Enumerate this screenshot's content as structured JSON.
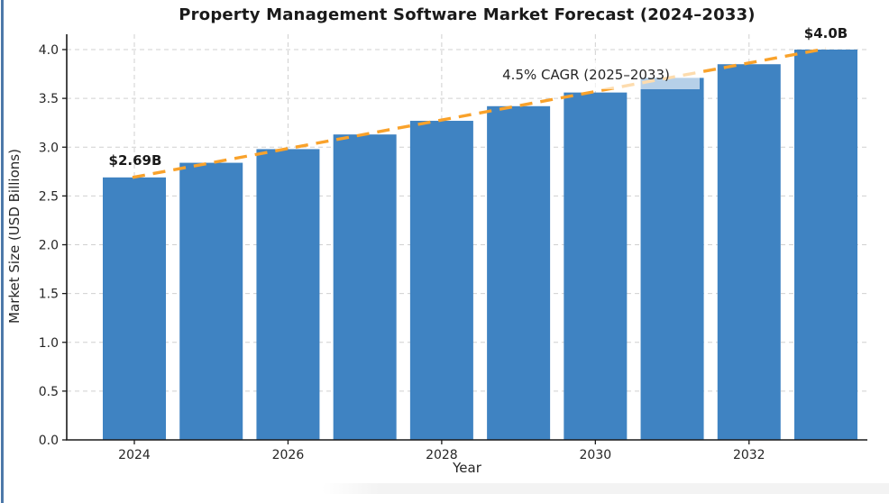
{
  "window": {
    "background": "#ffffff",
    "left_border_color": "#4d79a9",
    "footer_band_color": "#f3f3f3"
  },
  "chart": {
    "title": "Property Management Software Market Forecast (2024–2033)",
    "xlabel": "Year",
    "ylabel": "Market Size (USD Billions)",
    "annotations": {
      "start_value": "$2.69B",
      "end_value": "$4.0B",
      "cagr_label": "4.5% CAGR (2025–2033)"
    },
    "colors": {
      "bar": "#3f83c2",
      "trend": "#f9a22b",
      "grid": "#d0d0d0",
      "spine": "#1a1a1a",
      "text": "#262626"
    }
  },
  "chart_data": {
    "type": "bar",
    "title": "Property Management Software Market Forecast (2024–2033)",
    "xlabel": "Year",
    "ylabel": "Market Size (USD Billions)",
    "categories": [
      "2024",
      "2025",
      "2026",
      "2027",
      "2028",
      "2029",
      "2030",
      "2031",
      "2032",
      "2033"
    ],
    "values": [
      2.69,
      2.84,
      2.98,
      3.13,
      3.27,
      3.42,
      3.56,
      3.71,
      3.85,
      4.0
    ],
    "ylim": [
      0,
      4.15
    ],
    "y_tick_labels": [
      "0.0",
      "0.5",
      "1.0",
      "1.5",
      "2.0",
      "2.5",
      "3.0",
      "3.5",
      "4.0"
    ],
    "x_tick_labels": [
      "2024",
      "2026",
      "2028",
      "2030",
      "2032"
    ],
    "grid": true,
    "legend": false,
    "bar_color": "#3f83c2",
    "trend_line": {
      "type": "line",
      "style": "dashed",
      "color": "#f9a22b",
      "label": "4.5% CAGR (2025–2033)",
      "points": [
        {
          "year": "2024",
          "value": 2.69
        },
        {
          "year": "2033",
          "value": 4.0
        }
      ]
    },
    "value_annotations": [
      {
        "year": "2024",
        "label": "$2.69B"
      },
      {
        "year": "2033",
        "label": "$4.0B"
      }
    ]
  }
}
